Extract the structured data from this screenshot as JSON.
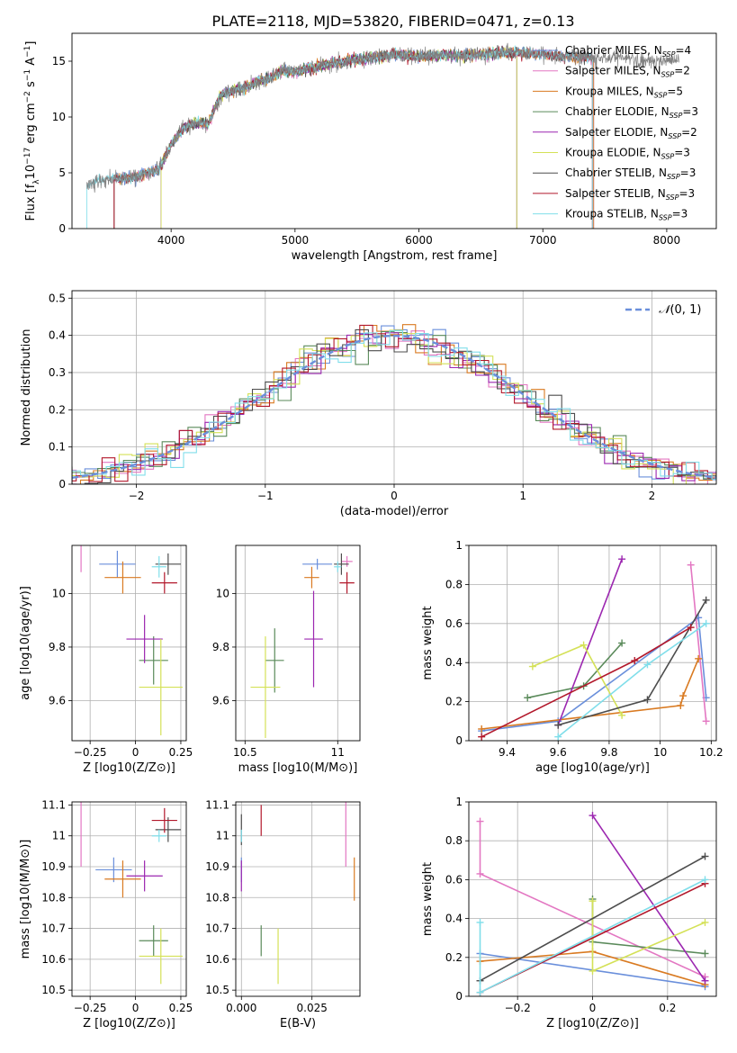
{
  "figure_title": "PLATE=2118, MJD=53820, FIBERID=0471, z=0.13",
  "colors": {
    "Chabrier MILES": "#6a8fdb",
    "Salpeter MILES": "#e377c2",
    "Kroupa MILES": "#d97a21",
    "Chabrier ELODIE": "#5a8a5a",
    "Salpeter ELODIE": "#9c27b0",
    "Kroupa ELODIE": "#d4e157",
    "Chabrier STELIB": "#4d4d4d",
    "Salpeter STELIB": "#b2182b",
    "Kroupa STELIB": "#80deea"
  },
  "chart_data": [
    {
      "id": "spectrum",
      "type": "line",
      "xlabel": "wavelength [Angstrom, rest frame]",
      "ylabel": "Flux [f_λ10^-17 erg cm^-2 s^-1 A^-1]",
      "xlim": [
        3200,
        8400
      ],
      "ylim": [
        0,
        17.5
      ],
      "xticks": [
        4000,
        5000,
        6000,
        7000,
        8000
      ],
      "yticks": [
        0,
        5,
        10,
        15
      ],
      "grid": false,
      "legend": "upper right",
      "data_color": "#808080",
      "data_x": [
        3320,
        3400,
        3500,
        3600,
        3700,
        3800,
        3900,
        4000,
        4100,
        4200,
        4300,
        4400,
        4500,
        4600,
        4700,
        4800,
        4900,
        5000,
        5200,
        5400,
        5600,
        5800,
        6000,
        6200,
        6400,
        6600,
        6800,
        7000,
        7200,
        7400,
        7600,
        7800,
        8000,
        8100
      ],
      "data_y": [
        4.0,
        4.3,
        4.4,
        4.5,
        4.6,
        5.0,
        5.3,
        7.5,
        9.0,
        9.5,
        9.4,
        12.0,
        12.4,
        12.6,
        13.2,
        13.5,
        14.2,
        14.0,
        14.6,
        15.0,
        15.3,
        15.6,
        15.4,
        15.6,
        15.5,
        15.7,
        15.8,
        15.6,
        15.4,
        15.3,
        15.4,
        15.0,
        15.1,
        15.2
      ],
      "model_ranges": [
        {
          "name": "Chabrier MILES",
          "label": "Chabrier MILES, N",
          "n": "4",
          "start": 3540,
          "end": 7410
        },
        {
          "name": "Salpeter MILES",
          "label": "Salpeter MILES, N",
          "n": "2",
          "start": 3540,
          "end": 7410
        },
        {
          "name": "Kroupa MILES",
          "label": "Kroupa MILES, N",
          "n": "5",
          "start": 3540,
          "end": 7410
        },
        {
          "name": "Chabrier ELODIE",
          "label": "Chabrier ELODIE, N",
          "n": "3",
          "start": 3920,
          "end": 6790
        },
        {
          "name": "Salpeter ELODIE",
          "label": "Salpeter ELODIE, N",
          "n": "2",
          "start": 3920,
          "end": 6790
        },
        {
          "name": "Kroupa ELODIE",
          "label": "Kroupa ELODIE, N",
          "n": "3",
          "start": 3920,
          "end": 6790
        },
        {
          "name": "Chabrier STELIB",
          "label": "Chabrier STELIB, N",
          "n": "3",
          "start": 3540,
          "end": 7400
        },
        {
          "name": "Salpeter STELIB",
          "label": "Salpeter STELIB, N",
          "n": "3",
          "start": 3540,
          "end": 7400
        },
        {
          "name": "Kroupa STELIB",
          "label": "Kroupa STELIB, N",
          "n": "3",
          "start": 3320,
          "end": 7400
        }
      ],
      "legend_subscript": "SSP"
    },
    {
      "id": "residuals",
      "type": "histogram",
      "xlabel": "(data-model)/error",
      "ylabel": "Normed distribution",
      "xlim": [
        -2.5,
        2.5
      ],
      "ylim": [
        0,
        0.52
      ],
      "xticks": [
        -2,
        -1,
        0,
        1,
        2
      ],
      "yticks": [
        0,
        0.1,
        0.2,
        0.3,
        0.4,
        0.5
      ],
      "grid": true,
      "legend_label": "N(0,1)",
      "reference_color": "#6a8fdb"
    },
    {
      "id": "age_vs_Z",
      "type": "errorbar",
      "xlabel": "Z [log10(Z/Z⊙)]",
      "ylabel": "age [log10(age/yr)]",
      "xlim": [
        -0.35,
        0.28
      ],
      "ylim": [
        9.45,
        10.18
      ],
      "xticks": [
        -0.25,
        0.0,
        0.25
      ],
      "yticks": [
        9.6,
        9.8,
        10.0
      ],
      "grid": true,
      "points": [
        {
          "model": "Chabrier MILES",
          "x": -0.1,
          "y": 10.11,
          "xerr": 0.1,
          "yerr": 0.05
        },
        {
          "model": "Salpeter MILES",
          "x": -0.3,
          "y": 10.13,
          "xerr": 0.0,
          "yerr": 0.05
        },
        {
          "model": "Kroupa MILES",
          "x": -0.07,
          "y": 10.06,
          "xerr": 0.1,
          "yerr": 0.06
        },
        {
          "model": "Chabrier ELODIE",
          "x": 0.1,
          "y": 9.75,
          "xerr": 0.08,
          "yerr": 0.09
        },
        {
          "model": "Salpeter ELODIE",
          "x": 0.05,
          "y": 9.83,
          "xerr": 0.1,
          "yerr": 0.09
        },
        {
          "model": "Kroupa ELODIE",
          "x": 0.14,
          "y": 9.65,
          "xerr": 0.12,
          "yerr": 0.18
        },
        {
          "model": "Chabrier STELIB",
          "x": 0.18,
          "y": 10.11,
          "xerr": 0.07,
          "yerr": 0.04
        },
        {
          "model": "Salpeter STELIB",
          "x": 0.16,
          "y": 10.04,
          "xerr": 0.07,
          "yerr": 0.04
        },
        {
          "model": "Kroupa STELIB",
          "x": 0.13,
          "y": 10.1,
          "xerr": 0.04,
          "yerr": 0.04
        }
      ]
    },
    {
      "id": "age_vs_mass",
      "type": "errorbar",
      "xlabel": "mass [log10(M/M⊙)]",
      "ylabel": "",
      "xlim": [
        10.45,
        11.12
      ],
      "ylim": [
        9.45,
        10.18
      ],
      "xticks": [
        10.5,
        11.0
      ],
      "yticks": [
        9.6,
        9.8,
        10.0
      ],
      "grid": true,
      "points": [
        {
          "model": "Chabrier MILES",
          "x": 10.89,
          "y": 10.11,
          "xerr": 0.08,
          "yerr": 0.02
        },
        {
          "model": "Salpeter MILES",
          "x": 11.05,
          "y": 10.12,
          "xerr": 0.03,
          "yerr": 0.02
        },
        {
          "model": "Kroupa MILES",
          "x": 10.86,
          "y": 10.06,
          "xerr": 0.04,
          "yerr": 0.04
        },
        {
          "model": "Chabrier ELODIE",
          "x": 10.66,
          "y": 9.75,
          "xerr": 0.05,
          "yerr": 0.12
        },
        {
          "model": "Salpeter ELODIE",
          "x": 10.87,
          "y": 9.83,
          "xerr": 0.05,
          "yerr": 0.18
        },
        {
          "model": "Kroupa ELODIE",
          "x": 10.61,
          "y": 9.65,
          "xerr": 0.08,
          "yerr": 0.19
        },
        {
          "model": "Chabrier STELIB",
          "x": 11.02,
          "y": 10.11,
          "xerr": 0.04,
          "yerr": 0.04
        },
        {
          "model": "Salpeter STELIB",
          "x": 11.05,
          "y": 10.04,
          "xerr": 0.04,
          "yerr": 0.04
        },
        {
          "model": "Kroupa STELIB",
          "x": 11.0,
          "y": 10.1,
          "xerr": 0.02,
          "yerr": 0.02
        }
      ]
    },
    {
      "id": "weight_vs_age",
      "type": "line",
      "xlabel": "age [log10(age/yr)]",
      "ylabel": "mass weight",
      "xlim": [
        9.25,
        10.22
      ],
      "ylim": [
        0,
        1.0
      ],
      "xticks": [
        9.4,
        9.6,
        9.8,
        10.0,
        10.2
      ],
      "yticks": [
        0.0,
        0.2,
        0.4,
        0.6,
        0.8,
        1.0
      ],
      "grid": true,
      "series": [
        {
          "model": "Chabrier MILES",
          "x": [
            9.3,
            9.6,
            10.15,
            10.18
          ],
          "y": [
            0.05,
            0.1,
            0.63,
            0.22
          ]
        },
        {
          "model": "Salpeter MILES",
          "x": [
            10.12,
            10.18
          ],
          "y": [
            0.9,
            0.1
          ]
        },
        {
          "model": "Kroupa MILES",
          "x": [
            9.3,
            10.08,
            10.09,
            10.15
          ],
          "y": [
            0.06,
            0.18,
            0.23,
            0.42
          ]
        },
        {
          "model": "Chabrier ELODIE",
          "x": [
            9.48,
            9.7,
            9.85
          ],
          "y": [
            0.22,
            0.28,
            0.5
          ]
        },
        {
          "model": "Salpeter ELODIE",
          "x": [
            9.6,
            9.85
          ],
          "y": [
            0.08,
            0.93
          ]
        },
        {
          "model": "Kroupa ELODIE",
          "x": [
            9.5,
            9.7,
            9.85
          ],
          "y": [
            0.38,
            0.49,
            0.13
          ]
        },
        {
          "model": "Chabrier STELIB",
          "x": [
            9.6,
            9.95,
            10.18
          ],
          "y": [
            0.08,
            0.21,
            0.72
          ]
        },
        {
          "model": "Salpeter STELIB",
          "x": [
            9.3,
            9.9,
            10.12
          ],
          "y": [
            0.02,
            0.41,
            0.58
          ]
        },
        {
          "model": "Kroupa STELIB",
          "x": [
            9.6,
            9.95,
            10.18
          ],
          "y": [
            0.02,
            0.39,
            0.6
          ]
        }
      ]
    },
    {
      "id": "mass_vs_Z",
      "type": "errorbar",
      "xlabel": "Z [log10(Z/Z⊙)]",
      "ylabel": "mass [log10(M/M⊙)]",
      "xlim": [
        -0.35,
        0.28
      ],
      "ylim": [
        10.48,
        11.11
      ],
      "xticks": [
        -0.25,
        0.0,
        0.25
      ],
      "yticks": [
        10.5,
        10.6,
        10.7,
        10.8,
        10.9,
        11.0,
        11.1
      ],
      "grid": true,
      "points": [
        {
          "model": "Chabrier MILES",
          "x": -0.12,
          "y": 10.89,
          "xerr": 0.1,
          "yerr": 0.04
        },
        {
          "model": "Salpeter MILES",
          "x": -0.3,
          "y": 11.05,
          "xerr": 0.0,
          "yerr": 0.15
        },
        {
          "model": "Kroupa MILES",
          "x": -0.07,
          "y": 10.86,
          "xerr": 0.1,
          "yerr": 0.06
        },
        {
          "model": "Chabrier ELODIE",
          "x": 0.1,
          "y": 10.66,
          "xerr": 0.08,
          "yerr": 0.05
        },
        {
          "model": "Salpeter ELODIE",
          "x": 0.05,
          "y": 10.87,
          "xerr": 0.1,
          "yerr": 0.05
        },
        {
          "model": "Kroupa ELODIE",
          "x": 0.14,
          "y": 10.61,
          "xerr": 0.12,
          "yerr": 0.09
        },
        {
          "model": "Chabrier STELIB",
          "x": 0.18,
          "y": 11.02,
          "xerr": 0.07,
          "yerr": 0.04
        },
        {
          "model": "Salpeter STELIB",
          "x": 0.16,
          "y": 11.05,
          "xerr": 0.07,
          "yerr": 0.04
        },
        {
          "model": "Kroupa STELIB",
          "x": 0.13,
          "y": 11.0,
          "xerr": 0.04,
          "yerr": 0.02
        }
      ]
    },
    {
      "id": "mass_vs_ebv",
      "type": "errorbar",
      "xlabel": "E(B-V)",
      "ylabel": "",
      "xlim": [
        -0.002,
        0.042
      ],
      "ylim": [
        10.48,
        11.11
      ],
      "xticks": [
        0.0,
        0.025
      ],
      "xticklabels": [
        "0.000",
        "0.025"
      ],
      "yticks": [
        10.5,
        10.6,
        10.7,
        10.8,
        10.9,
        11.0,
        11.1
      ],
      "grid": true,
      "points": [
        {
          "model": "Chabrier MILES",
          "x": 0.0,
          "y": 10.89,
          "xerr": 0.0,
          "yerr": 0.04
        },
        {
          "model": "Salpeter MILES",
          "x": 0.037,
          "y": 11.05,
          "xerr": 0.0,
          "yerr": 0.15
        },
        {
          "model": "Kroupa MILES",
          "x": 0.04,
          "y": 10.86,
          "xerr": 0.0,
          "yerr": 0.07
        },
        {
          "model": "Chabrier ELODIE",
          "x": 0.007,
          "y": 10.66,
          "xerr": 0.0,
          "yerr": 0.05
        },
        {
          "model": "Salpeter ELODIE",
          "x": 0.0,
          "y": 10.87,
          "xerr": 0.0,
          "yerr": 0.05
        },
        {
          "model": "Kroupa ELODIE",
          "x": 0.013,
          "y": 10.61,
          "xerr": 0.0,
          "yerr": 0.09
        },
        {
          "model": "Chabrier STELIB",
          "x": 0.0,
          "y": 11.02,
          "xerr": 0.0,
          "yerr": 0.05
        },
        {
          "model": "Salpeter STELIB",
          "x": 0.007,
          "y": 11.05,
          "xerr": 0.0,
          "yerr": 0.05
        },
        {
          "model": "Kroupa STELIB",
          "x": 0.0,
          "y": 11.0,
          "xerr": 0.0,
          "yerr": 0.02
        }
      ]
    },
    {
      "id": "weight_vs_Z",
      "type": "line",
      "xlabel": "Z [log10(Z/Z⊙)]",
      "ylabel": "mass weight",
      "xlim": [
        -0.33,
        0.33
      ],
      "ylim": [
        0,
        1.0
      ],
      "xticks": [
        -0.2,
        0.0,
        0.2
      ],
      "yticks": [
        0.0,
        0.2,
        0.4,
        0.6,
        0.8,
        1.0
      ],
      "grid": true,
      "series": [
        {
          "model": "Chabrier MILES",
          "x": [
            -0.3,
            0.3
          ],
          "y": [
            0.22,
            0.05
          ]
        },
        {
          "model": "Salpeter MILES",
          "x": [
            -0.3,
            -0.3,
            0.3
          ],
          "y": [
            0.9,
            0.63,
            0.1
          ]
        },
        {
          "model": "Kroupa MILES",
          "x": [
            -0.3,
            0.0,
            0.3
          ],
          "y": [
            0.18,
            0.23,
            0.06
          ]
        },
        {
          "model": "Chabrier ELODIE",
          "x": [
            0.0,
            0.0,
            0.3
          ],
          "y": [
            0.5,
            0.28,
            0.22
          ]
        },
        {
          "model": "Salpeter ELODIE",
          "x": [
            0.0,
            0.3
          ],
          "y": [
            0.93,
            0.08
          ]
        },
        {
          "model": "Kroupa ELODIE",
          "x": [
            0.0,
            0.0,
            0.3
          ],
          "y": [
            0.49,
            0.13,
            0.38
          ]
        },
        {
          "model": "Chabrier STELIB",
          "x": [
            -0.3,
            0.3
          ],
          "y": [
            0.08,
            0.72
          ]
        },
        {
          "model": "Salpeter STELIB",
          "x": [
            -0.3,
            0.3
          ],
          "y": [
            0.02,
            0.58
          ]
        },
        {
          "model": "Kroupa STELIB",
          "x": [
            -0.3,
            -0.3,
            0.3
          ],
          "y": [
            0.38,
            0.02,
            0.6
          ]
        }
      ]
    }
  ]
}
